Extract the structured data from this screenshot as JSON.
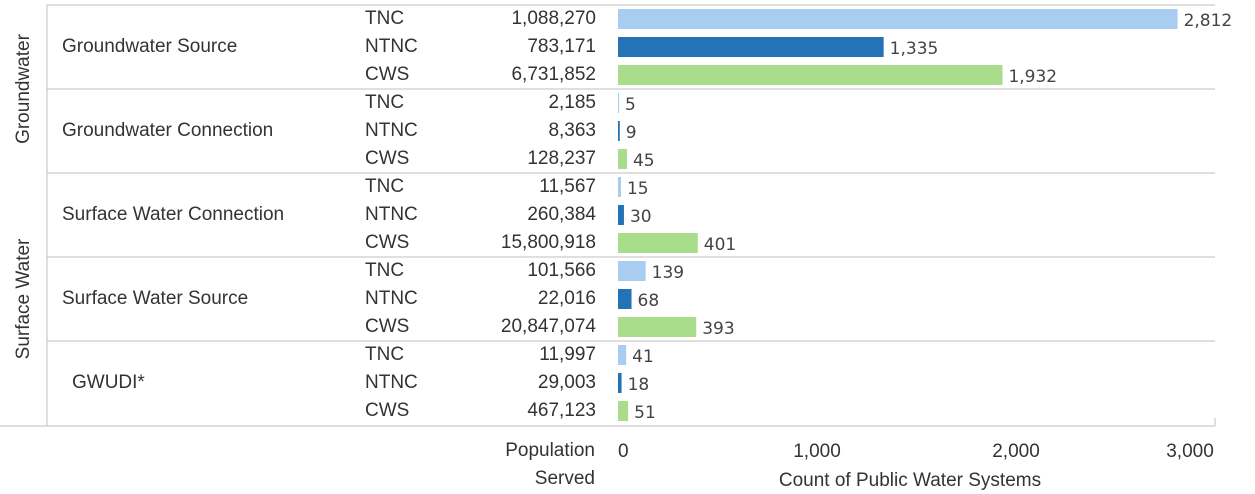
{
  "chart_data": {
    "type": "hbar",
    "outer_groups": [
      "Groundwater",
      "Surface Water"
    ],
    "source_groups": [
      "Groundwater Source",
      "Groundwater Connection",
      "Surface Water Connection",
      "Surface Water Source",
      "GWUDI*"
    ],
    "categories": [
      "TNC",
      "NTNC",
      "CWS",
      "TNC",
      "NTNC",
      "CWS",
      "TNC",
      "NTNC",
      "CWS",
      "TNC",
      "NTNC",
      "CWS",
      "TNC",
      "NTNC",
      "CWS"
    ],
    "population_header": "Population Served",
    "population": [
      "1,088,270",
      "783,171",
      "6,731,852",
      "2,185",
      "8,363",
      "128,237",
      "11,567",
      "260,384",
      "15,800,918",
      "101,566",
      "22,016",
      "20,847,074",
      "11,997",
      "29,003",
      "467,123"
    ],
    "values": [
      2812,
      1335,
      1932,
      5,
      9,
      45,
      15,
      30,
      401,
      139,
      68,
      393,
      41,
      18,
      51
    ],
    "value_labels": [
      "2,812",
      "1,335",
      "1,932",
      "5",
      "9",
      "45",
      "15",
      "30",
      "401",
      "139",
      "68",
      "393",
      "41",
      "18",
      "51"
    ],
    "colors": [
      "#a9cdf0",
      "#2373b6",
      "#a9dd8c",
      "#a9cdf0",
      "#2373b6",
      "#a9dd8c",
      "#a9cdf0",
      "#2373b6",
      "#a9dd8c",
      "#a9cdf0",
      "#2373b6",
      "#a9dd8c",
      "#a9cdf0",
      "#2373b6",
      "#a9dd8c"
    ],
    "xlim": [
      0,
      3000
    ],
    "xticks": [
      0,
      {
        "value": 1000,
        "label": "1,000"
      },
      {
        "value": 2000,
        "label": "2,000"
      },
      {
        "value": 3000,
        "label": "3,000"
      }
    ],
    "x_label": "Count of Public Water Systems"
  }
}
